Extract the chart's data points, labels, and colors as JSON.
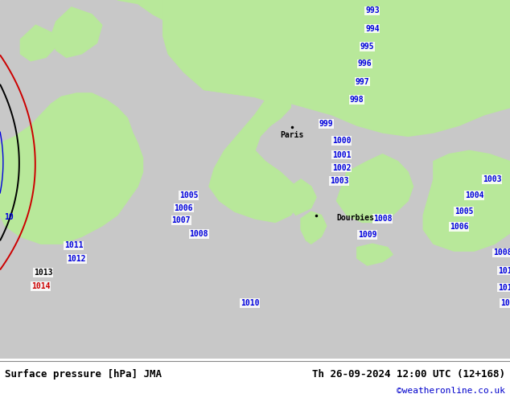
{
  "title_left": "Surface pressure [hPa] JMA",
  "title_right": "Th 26-09-2024 12:00 UTC (12+168)",
  "credit": "©weatheronline.co.uk",
  "isobar_color_blue": "#0000dd",
  "isobar_color_black": "#000000",
  "isobar_color_red": "#cc0000",
  "land_color": "#b8e89a",
  "sea_color": "#c8c8c8",
  "background_color": "#ffffff",
  "fig_width": 6.34,
  "fig_height": 4.9,
  "dpi": 100
}
